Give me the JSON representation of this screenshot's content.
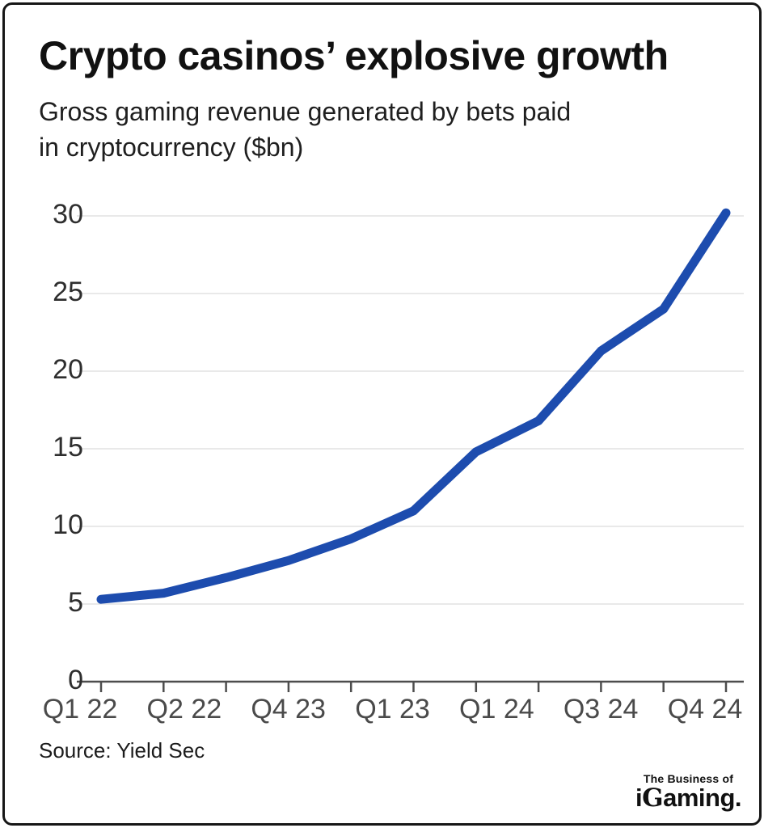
{
  "header": {
    "title": "Crypto casinos’ explosive growth",
    "subtitle_line1": "Gross gaming revenue generated by bets paid",
    "subtitle_line2": "in cryptocurrency ($bn)"
  },
  "chart_data": {
    "type": "line",
    "title": "Crypto casinos' explosive growth",
    "subtitle": "Gross gaming revenue generated by bets paid in cryptocurrency ($bn)",
    "unit": "$bn",
    "series": [
      {
        "name": "Gross gaming revenue from crypto bets",
        "values": [
          5.3,
          5.7,
          6.7,
          7.8,
          9.2,
          11.0,
          14.8,
          16.8,
          21.3,
          24.0,
          30.2
        ]
      }
    ],
    "x_tick_labels": [
      "Q1 22",
      "Q2 22",
      "Q4 23",
      "Q1 23",
      "Q1 24",
      "Q3 24",
      "Q4 24"
    ],
    "y_tick_labels": [
      "0",
      "5",
      "10",
      "15",
      "20",
      "25",
      "30"
    ],
    "y_ticks": [
      0,
      5,
      10,
      15,
      20,
      25,
      30
    ],
    "ylim": [
      0,
      30.5
    ],
    "xlabel": "",
    "ylabel": "",
    "grid": true,
    "legend": "none",
    "line_color": "#1d4cae",
    "grid_color": "#e9e9e9",
    "axis_color": "#4d4d4d"
  },
  "footer": {
    "source": "Source: Yield Sec",
    "logo_top": "The Business of",
    "logo_i": "i",
    "logo_g": "G",
    "logo_rest": "aming."
  }
}
